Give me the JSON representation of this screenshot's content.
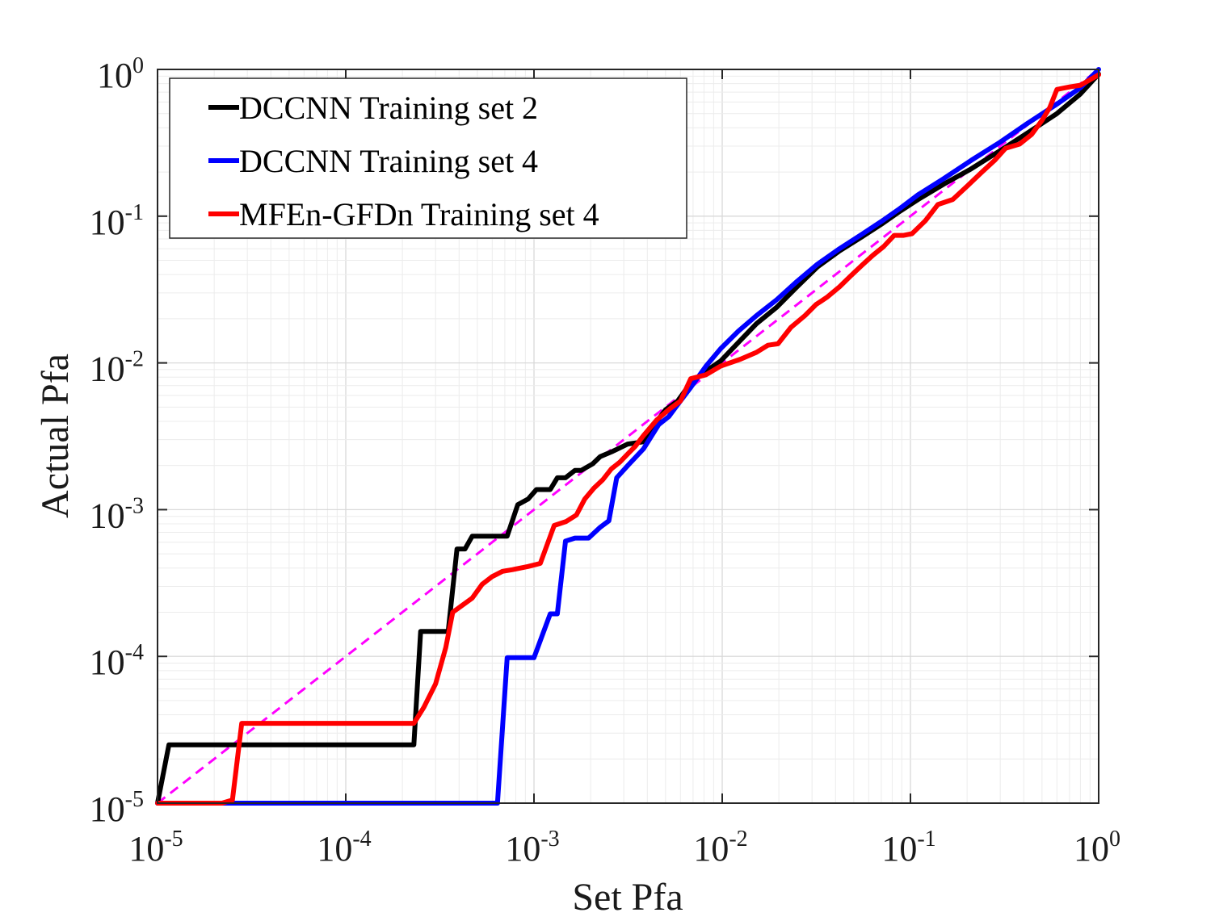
{
  "chart_data": {
    "type": "line",
    "scale": "log-log",
    "xlabel": "Set Pfa",
    "ylabel": "Actual Pfa",
    "xlim": [
      1e-05,
      1
    ],
    "ylim": [
      1e-05,
      1
    ],
    "grid": true,
    "legend_position": "top-left",
    "x_ticks": [
      {
        "base": "10",
        "exp": "-5"
      },
      {
        "base": "10",
        "exp": "-4"
      },
      {
        "base": "10",
        "exp": "-3"
      },
      {
        "base": "10",
        "exp": "-2"
      },
      {
        "base": "10",
        "exp": "-1"
      },
      {
        "base": "10",
        "exp": "0"
      }
    ],
    "y_ticks": [
      {
        "base": "10",
        "exp": "-5"
      },
      {
        "base": "10",
        "exp": "-4"
      },
      {
        "base": "10",
        "exp": "-3"
      },
      {
        "base": "10",
        "exp": "-2"
      },
      {
        "base": "10",
        "exp": "-1"
      },
      {
        "base": "10",
        "exp": "0"
      }
    ],
    "reference_line": {
      "name": "ideal",
      "color": "#ff00ff",
      "style": "dashed",
      "x": [
        1e-05,
        1
      ],
      "y": [
        1e-05,
        1
      ]
    },
    "series": [
      {
        "name": "DCCNN Training set 2",
        "color": "#000000",
        "x": [
          1e-05,
          1.15e-05,
          0.00023,
          0.00025,
          0.00035,
          0.00039,
          0.00043,
          0.00047,
          0.00052,
          0.00058,
          0.00064,
          0.00072,
          0.00082,
          0.00093,
          0.00103,
          0.00122,
          0.00133,
          0.00147,
          0.00165,
          0.00178,
          0.00205,
          0.00225,
          0.00262,
          0.00315,
          0.00382,
          0.00435,
          0.005,
          0.0058,
          0.0068,
          0.0082,
          0.0098,
          0.0122,
          0.0152,
          0.0195,
          0.025,
          0.032,
          0.042,
          0.055,
          0.07,
          0.088,
          0.11,
          0.15,
          0.21,
          0.3,
          0.42,
          0.6,
          0.8,
          1.0
        ],
        "y": [
          1e-05,
          2.5e-05,
          2.5e-05,
          0.000148,
          0.000148,
          0.00054,
          0.00054,
          0.00066,
          0.00066,
          0.00066,
          0.00066,
          0.00066,
          0.00108,
          0.00118,
          0.00137,
          0.00137,
          0.00165,
          0.00165,
          0.00185,
          0.00185,
          0.00205,
          0.0023,
          0.0025,
          0.0028,
          0.0029,
          0.0038,
          0.0048,
          0.0055,
          0.0073,
          0.0088,
          0.0103,
          0.0138,
          0.0185,
          0.024,
          0.033,
          0.045,
          0.058,
          0.072,
          0.088,
          0.108,
          0.13,
          0.165,
          0.21,
          0.28,
          0.37,
          0.5,
          0.68,
          0.93
        ]
      },
      {
        "name": "DCCNN Training set 4",
        "color": "#0000ff",
        "x": [
          1e-05,
          0.00064,
          0.00072,
          0.001,
          0.00122,
          0.00133,
          0.00147,
          0.00165,
          0.00195,
          0.00225,
          0.0025,
          0.00275,
          0.00315,
          0.00382,
          0.0046,
          0.0052,
          0.0058,
          0.0068,
          0.0082,
          0.0098,
          0.0122,
          0.0152,
          0.0195,
          0.025,
          0.032,
          0.042,
          0.055,
          0.07,
          0.088,
          0.11,
          0.15,
          0.21,
          0.3,
          0.42,
          0.6,
          0.8,
          1.0
        ],
        "y": [
          1e-05,
          1e-05,
          9.8e-05,
          9.8e-05,
          0.000195,
          0.000195,
          0.00061,
          0.00064,
          0.00064,
          0.00076,
          0.00084,
          0.00165,
          0.002,
          0.0026,
          0.0038,
          0.0043,
          0.0052,
          0.0068,
          0.0095,
          0.0125,
          0.0165,
          0.021,
          0.027,
          0.036,
          0.047,
          0.06,
          0.075,
          0.092,
          0.113,
          0.14,
          0.18,
          0.24,
          0.32,
          0.43,
          0.58,
          0.75,
          1.0
        ]
      },
      {
        "name": "MFEn-GFDn Training set 4",
        "color": "#ff0000",
        "x": [
          1e-05,
          2.2e-05,
          2.5e-05,
          2.8e-05,
          0.00023,
          0.00026,
          0.0003,
          0.00034,
          0.00037,
          0.00041,
          0.00047,
          0.00053,
          0.0006,
          0.00068,
          0.00077,
          0.00093,
          0.00108,
          0.00128,
          0.00148,
          0.00168,
          0.00186,
          0.00208,
          0.00232,
          0.00258,
          0.00285,
          0.00315,
          0.00345,
          0.00382,
          0.0045,
          0.0053,
          0.006,
          0.0068,
          0.0082,
          0.0098,
          0.0125,
          0.0152,
          0.0175,
          0.0198,
          0.0232,
          0.0275,
          0.0315,
          0.036,
          0.042,
          0.048,
          0.055,
          0.063,
          0.072,
          0.082,
          0.092,
          0.102,
          0.12,
          0.14,
          0.168,
          0.2,
          0.24,
          0.28,
          0.32,
          0.38,
          0.44,
          0.5,
          0.55,
          0.6,
          0.7,
          0.8,
          0.9,
          1.0
        ],
        "y": [
          1e-05,
          1e-05,
          1.05e-05,
          3.5e-05,
          3.5e-05,
          4.5e-05,
          6.5e-05,
          0.000115,
          0.0002,
          0.00022,
          0.00025,
          0.00031,
          0.00035,
          0.00038,
          0.00039,
          0.00041,
          0.00043,
          0.00078,
          0.00083,
          0.00092,
          0.00118,
          0.0014,
          0.0016,
          0.0019,
          0.0021,
          0.0024,
          0.0027,
          0.0032,
          0.0041,
          0.0049,
          0.0055,
          0.0078,
          0.0083,
          0.0095,
          0.0106,
          0.0118,
          0.0132,
          0.0135,
          0.0175,
          0.021,
          0.025,
          0.028,
          0.033,
          0.039,
          0.046,
          0.054,
          0.062,
          0.074,
          0.074,
          0.076,
          0.093,
          0.12,
          0.13,
          0.16,
          0.2,
          0.24,
          0.29,
          0.31,
          0.36,
          0.45,
          0.55,
          0.73,
          0.76,
          0.78,
          0.85,
          0.92
        ]
      }
    ]
  }
}
